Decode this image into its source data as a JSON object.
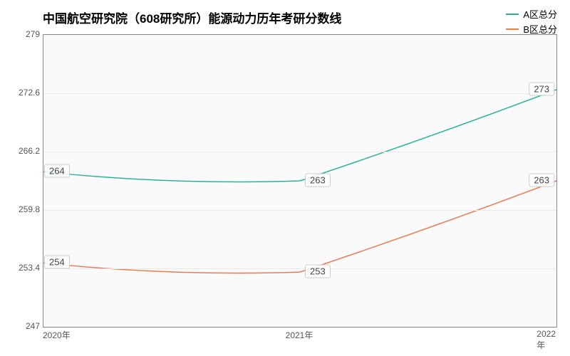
{
  "title": "中国航空研究院（608研究所）能源动力历年考研分数线",
  "title_fontsize": 17,
  "type": "line",
  "background_color": "#fafafa",
  "border_color": "#888888",
  "grid_color": "#e8e8e8",
  "ylim": [
    247,
    279
  ],
  "yticks": [
    247,
    253.4,
    259.8,
    266.2,
    272.6,
    279
  ],
  "x_categories": [
    "2020年",
    "2021年",
    "2022年"
  ],
  "x_positions": [
    0,
    0.5,
    1.0
  ],
  "series": [
    {
      "name": "A区总分",
      "color": "#2bb39a",
      "values": [
        264,
        263,
        273
      ],
      "line_width": 1.5,
      "smooth": true
    },
    {
      "name": "B区总分",
      "color": "#e87b52",
      "values": [
        254,
        253,
        263
      ],
      "line_width": 1.5,
      "smooth": true
    }
  ],
  "legend": {
    "position": "top-right",
    "fontsize": 13
  },
  "label_fontsize": 13,
  "tick_fontsize": 12
}
